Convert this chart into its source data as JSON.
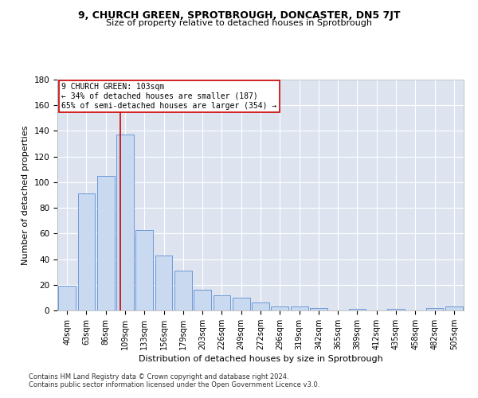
{
  "title1": "9, CHURCH GREEN, SPROTBROUGH, DONCASTER, DN5 7JT",
  "title2": "Size of property relative to detached houses in Sprotbrough",
  "xlabel": "Distribution of detached houses by size in Sprotbrough",
  "ylabel": "Number of detached properties",
  "footnote1": "Contains HM Land Registry data © Crown copyright and database right 2024.",
  "footnote2": "Contains public sector information licensed under the Open Government Licence v3.0.",
  "bins": [
    "40sqm",
    "63sqm",
    "86sqm",
    "109sqm",
    "133sqm",
    "156sqm",
    "179sqm",
    "203sqm",
    "226sqm",
    "249sqm",
    "272sqm",
    "296sqm",
    "319sqm",
    "342sqm",
    "365sqm",
    "389sqm",
    "412sqm",
    "435sqm",
    "458sqm",
    "482sqm",
    "505sqm"
  ],
  "values": [
    19,
    91,
    105,
    137,
    63,
    43,
    31,
    16,
    12,
    10,
    6,
    3,
    3,
    2,
    0,
    1,
    0,
    1,
    0,
    2,
    3
  ],
  "bar_color": "#c9d9f0",
  "bar_edge_color": "#5b8fd4",
  "bg_color": "#dde4f0",
  "grid_color": "#ffffff",
  "property_label": "9 CHURCH GREEN: 103sqm",
  "annotation_line1": "← 34% of detached houses are smaller (187)",
  "annotation_line2": "65% of semi-detached houses are larger (354) →",
  "vline_color": "#cc0000",
  "vline_x": 2.77,
  "ylim": [
    0,
    180
  ],
  "yticks": [
    0,
    20,
    40,
    60,
    80,
    100,
    120,
    140,
    160,
    180
  ],
  "fig_bg": "#ffffff",
  "title1_fontsize": 9,
  "title2_fontsize": 8,
  "footnote_fontsize": 6,
  "bar_fontsize": 7,
  "ylabel_fontsize": 8,
  "xlabel_fontsize": 8
}
